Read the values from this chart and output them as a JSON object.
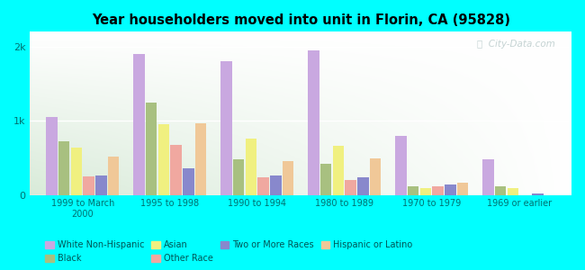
{
  "title": "Year householders moved into unit in Florin, CA (95828)",
  "background_color": "#00FFFF",
  "categories": [
    "1999 to March\n2000",
    "1995 to 1998",
    "1990 to 1994",
    "1980 to 1989",
    "1970 to 1979",
    "1969 or earlier"
  ],
  "series": [
    {
      "name": "White Non-Hispanic",
      "color": "#c9a8e0",
      "values": [
        1050,
        1900,
        1800,
        1950,
        800,
        480
      ]
    },
    {
      "name": "Black",
      "color": "#a8c080",
      "values": [
        720,
        1250,
        480,
        420,
        120,
        120
      ]
    },
    {
      "name": "Asian",
      "color": "#f0f080",
      "values": [
        640,
        950,
        760,
        660,
        90,
        90
      ]
    },
    {
      "name": "Other Race",
      "color": "#f0a8a0",
      "values": [
        250,
        680,
        240,
        200,
        110,
        0
      ]
    },
    {
      "name": "Two or More Races",
      "color": "#8888cc",
      "values": [
        260,
        360,
        260,
        240,
        140,
        15
      ]
    },
    {
      "name": "Hispanic or Latino",
      "color": "#f0c898",
      "values": [
        520,
        960,
        460,
        490,
        170,
        0
      ]
    }
  ],
  "ylim": [
    0,
    2200
  ],
  "yticks": [
    0,
    1000,
    2000
  ],
  "ytick_labels": [
    "0",
    "1k",
    "2k"
  ],
  "watermark": "ⓘ  City-Data.com",
  "legend_order": [
    "White Non-Hispanic",
    "Black",
    "Asian",
    "Other Race",
    "Two or More Races",
    "Hispanic or Latino"
  ]
}
